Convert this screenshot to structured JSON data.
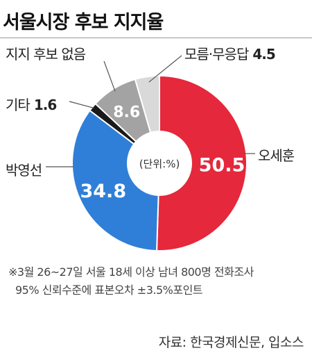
{
  "title": "서울시장 후보 지지율",
  "chart_data": {
    "type": "pie",
    "style": "donut",
    "center_label": "(단위:%)",
    "slices": [
      {
        "name": "오세훈",
        "value": 50.5,
        "color": "#e5283b",
        "value_label": "50.5"
      },
      {
        "name": "박영선",
        "value": 34.8,
        "color": "#2f7fd8",
        "value_label": "34.8"
      },
      {
        "name": "기타",
        "value": 1.6,
        "color": "#1a1a1a",
        "value_label": "1.6"
      },
      {
        "name": "지지 후보 없음",
        "value": 8.6,
        "color": "#a3a3a3",
        "value_label": "8.6"
      },
      {
        "name": "모름·무응답",
        "value": 4.5,
        "color": "#d9d9d9",
        "value_label": "4.5"
      }
    ]
  },
  "labels": {
    "ohsehoon": "오세훈",
    "parkyoungsun": "박영선",
    "etc": "기타",
    "etc_value": "1.6",
    "none": "지지 후보 없음",
    "unknown": "모름·무응답",
    "unknown_value": "4.5"
  },
  "notes": {
    "line1": "※3월 26~27일 서울 18세 이상 남녀 800명 전화조사",
    "line2": "95% 신뢰수준에 표본오차 ±3.5%포인트"
  },
  "source": "자료: 한국경제신문, 입소스"
}
